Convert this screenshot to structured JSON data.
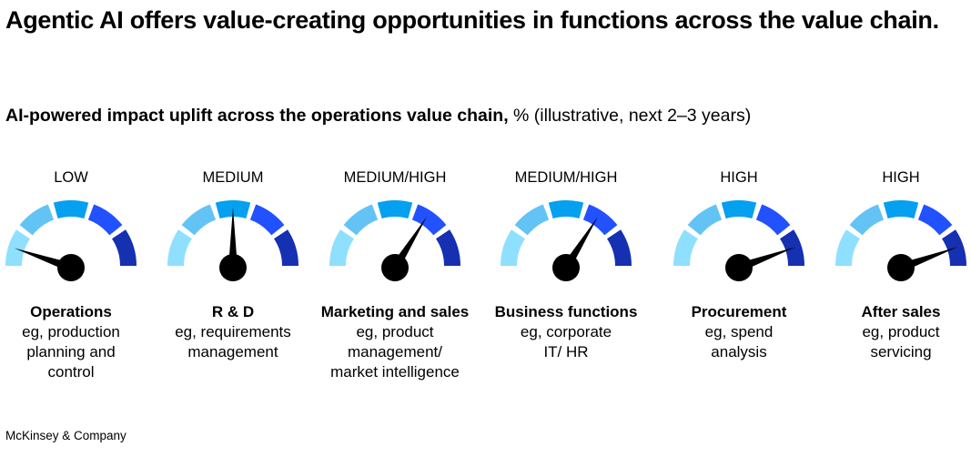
{
  "title": "Agentic AI offers value-creating opportunities in functions across the value chain.",
  "subtitle_bold": "AI-powered impact uplift across the operations value chain,",
  "subtitle_rest": " % (illustrative, next 2–3 years)",
  "source": "McKinsey & Company",
  "chart_data": {
    "type": "gauge",
    "scale_colors": [
      "#8fe0ff",
      "#63c3f5",
      "#05a0ef",
      "#2251ff",
      "#1530b0"
    ],
    "needle_scale": "degrees from left (0) to right (180)",
    "gauges": [
      {
        "level": "LOW",
        "name": "Operations",
        "desc": [
          "eg, production",
          "planning and",
          "control"
        ],
        "needle": 19
      },
      {
        "level": "MEDIUM",
        "name": "R & D",
        "desc": [
          "eg, requirements",
          "management"
        ],
        "needle": 90
      },
      {
        "level": "MEDIUM/HIGH",
        "name": "Marketing and sales",
        "desc": [
          "eg, product",
          "management/",
          "market intelligence"
        ],
        "needle": 122
      },
      {
        "level": "MEDIUM/HIGH",
        "name": "Business functions",
        "desc": [
          "eg, corporate",
          "IT/ HR"
        ],
        "needle": 122
      },
      {
        "level": "HIGH",
        "name": "Procurement",
        "desc": [
          "eg, spend",
          "analysis"
        ],
        "needle": 160
      },
      {
        "level": "HIGH",
        "name": "After sales",
        "desc": [
          "eg, product",
          "servicing"
        ],
        "needle": 160
      }
    ]
  }
}
